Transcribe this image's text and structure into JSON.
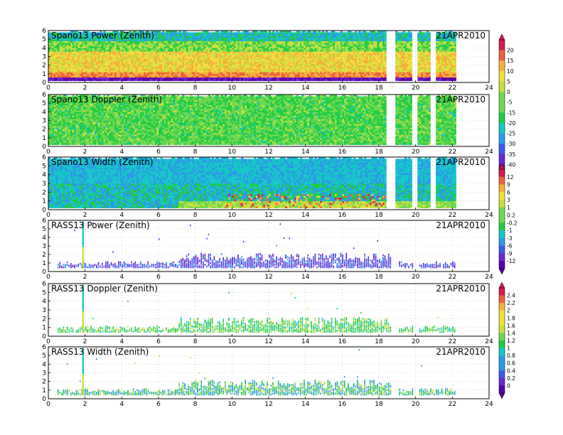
{
  "colors": {
    "palette": [
      "#5a00a8",
      "#6a28d8",
      "#3a5cf0",
      "#2c9ce8",
      "#16c8c8",
      "#22cc44",
      "#6ed850",
      "#c8e040",
      "#f2e040",
      "#f7b03c",
      "#f0603c",
      "#d81850"
    ],
    "frame": "#000000",
    "grid": "#bdbdbd"
  },
  "chart_data": [
    {
      "type": "heatmap",
      "title": "Spano13 Power (Zenith)",
      "date": "21APR2010",
      "xlim": [
        0,
        24
      ],
      "ylim": [
        0,
        6
      ],
      "xticks": [
        "0",
        "2",
        "4",
        "6",
        "8",
        "10",
        "12",
        "14",
        "16",
        "18",
        "20",
        "22",
        "24"
      ],
      "yticks": [
        "0",
        "1",
        "2",
        "3",
        "4",
        "5",
        "6"
      ],
      "colorbar": [
        "20",
        "15",
        "10",
        "5",
        "0",
        "-5",
        "-15",
        "-20",
        "-25",
        "-30",
        "-35",
        "-40"
      ],
      "data_coverage_hours": [
        [
          0,
          18.4
        ],
        [
          18.9,
          19.8
        ],
        [
          20.1,
          20.8
        ],
        [
          21.1,
          22.2
        ]
      ]
    },
    {
      "type": "heatmap",
      "title": "Spano13 Doppler (Zenith)",
      "date": "21APR2010",
      "xlim": [
        0,
        24
      ],
      "ylim": [
        0,
        6
      ],
      "xticks": [
        "0",
        "2",
        "4",
        "6",
        "8",
        "10",
        "12",
        "14",
        "16",
        "18",
        "20",
        "22",
        "24"
      ],
      "yticks": [
        "0",
        "1",
        "2",
        "3",
        "4",
        "5",
        "6"
      ],
      "colorbar": [],
      "data_coverage_hours": [
        [
          0,
          18.4
        ],
        [
          18.9,
          19.8
        ],
        [
          20.1,
          20.8
        ],
        [
          21.1,
          22.2
        ]
      ]
    },
    {
      "type": "heatmap",
      "title": "Spano13 Width (Zenith)",
      "date": "21APR2010",
      "xlim": [
        0,
        24
      ],
      "ylim": [
        0,
        6
      ],
      "xticks": [
        "0",
        "2",
        "4",
        "6",
        "8",
        "10",
        "12",
        "14",
        "16",
        "18",
        "20",
        "22",
        "24"
      ],
      "yticks": [
        "0",
        "1",
        "2",
        "3",
        "4",
        "5",
        "6"
      ],
      "colorbar": [
        "12",
        "9",
        "6",
        "3",
        "1",
        "0.2",
        "-0.2",
        "-1",
        "-3",
        "-6",
        "-9",
        "-12"
      ],
      "data_coverage_hours": [
        [
          0,
          18.4
        ],
        [
          18.9,
          19.8
        ],
        [
          20.1,
          20.8
        ],
        [
          21.1,
          22.2
        ]
      ]
    },
    {
      "type": "scatter",
      "title": "RASS13 Power (Zenith)",
      "date": "21APR2010",
      "xlim": [
        0,
        24
      ],
      "ylim": [
        0,
        6
      ],
      "xticks": [
        "0",
        "2",
        "4",
        "6",
        "8",
        "10",
        "12",
        "14",
        "16",
        "18",
        "20",
        "22",
        "24"
      ],
      "yticks": [
        "0",
        "1",
        "2",
        "3",
        "4",
        "5",
        "6"
      ],
      "colorbar": []
    },
    {
      "type": "scatter",
      "title": "RASS13 Doppler (Zenith)",
      "date": "21APR2010",
      "xlim": [
        0,
        24
      ],
      "ylim": [
        0,
        6
      ],
      "xticks": [
        "0",
        "2",
        "4",
        "6",
        "8",
        "10",
        "12",
        "14",
        "16",
        "18",
        "20",
        "22",
        "24"
      ],
      "yticks": [
        "0",
        "1",
        "2",
        "3",
        "4",
        "5",
        "6"
      ],
      "colorbar": [
        "2.4",
        "2.2",
        "2",
        "1.8",
        "1.6",
        "1.4",
        "1.2",
        "1",
        "0.8",
        "0.6",
        "0.4",
        "0.2",
        "0"
      ]
    },
    {
      "type": "scatter",
      "title": "RASS13 Width (Zenith)",
      "date": "21APR2010",
      "xlim": [
        0,
        24
      ],
      "ylim": [
        0,
        6
      ],
      "xticks": [
        "0",
        "2",
        "4",
        "6",
        "8",
        "10",
        "12",
        "14",
        "16",
        "18",
        "20",
        "22",
        "24"
      ],
      "yticks": [
        "0",
        "1",
        "2",
        "3",
        "4",
        "5",
        "6"
      ],
      "colorbar": []
    }
  ]
}
